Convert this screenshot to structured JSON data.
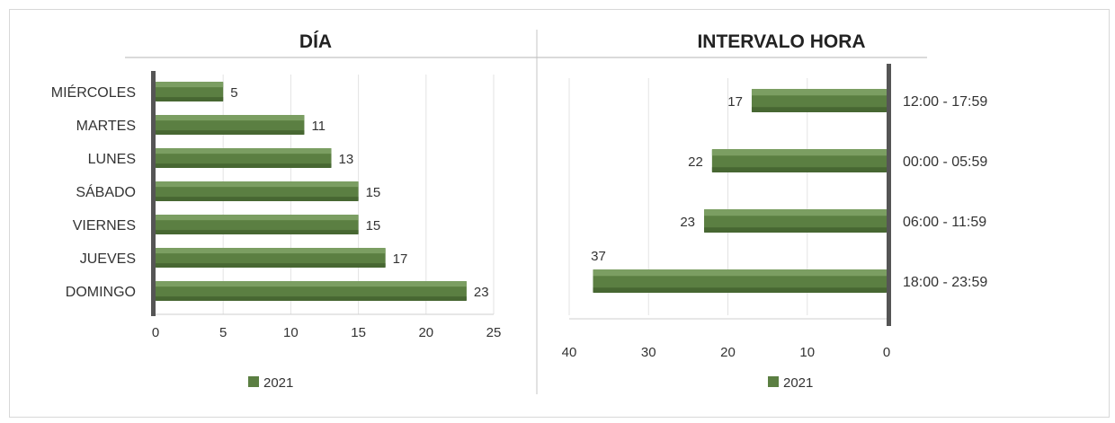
{
  "colors": {
    "bar_main": "#5b7f42",
    "bar_light": "#7ea266",
    "bar_dark": "#3f5d2c",
    "axis": "#555555",
    "grid": "#e3e3e3"
  },
  "chart_data": [
    {
      "type": "bar",
      "orientation": "horizontal",
      "title": "DÍA",
      "categories": [
        "MIÉRCOLES",
        "MARTES",
        "LUNES",
        "SÁBADO",
        "VIERNES",
        "JUEVES",
        "DOMINGO"
      ],
      "series": [
        {
          "name": "2021",
          "values": [
            5,
            11,
            13,
            15,
            15,
            17,
            23
          ]
        }
      ],
      "xlim": [
        0,
        25
      ],
      "xticks": [
        "0",
        "5",
        "10",
        "15",
        "20",
        "25"
      ],
      "legend": "bottom",
      "grid": true
    },
    {
      "type": "bar",
      "orientation": "horizontal",
      "reversed_x": true,
      "title": "INTERVALO HORA",
      "categories": [
        "12:00 - 17:59",
        "00:00 - 05:59",
        "06:00 - 11:59",
        "18:00 - 23:59"
      ],
      "series": [
        {
          "name": "2021",
          "values": [
            17,
            22,
            23,
            37
          ]
        }
      ],
      "xlim": [
        0,
        40
      ],
      "xticks": [
        "40",
        "30",
        "20",
        "10",
        "0"
      ],
      "legend": "bottom",
      "grid": true
    }
  ]
}
